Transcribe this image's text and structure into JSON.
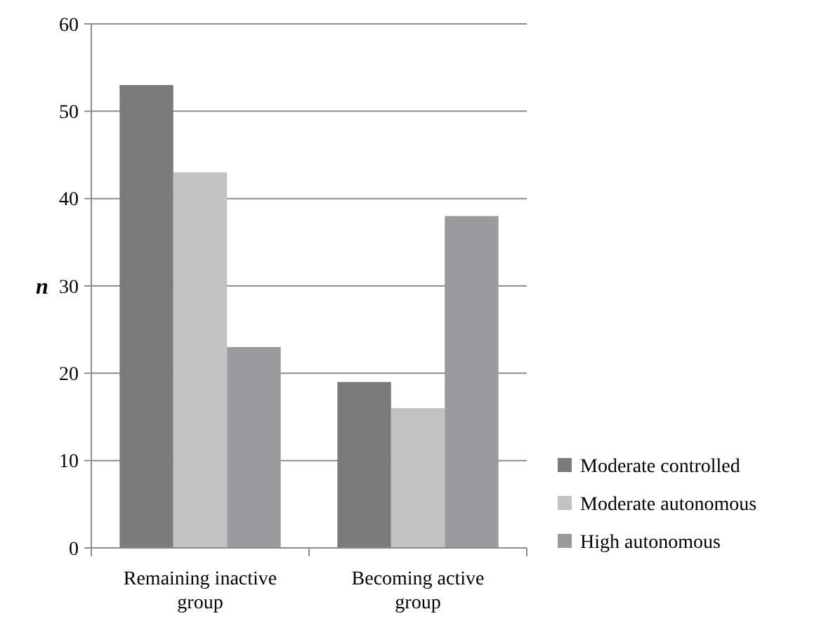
{
  "chart_data": {
    "type": "bar",
    "ylabel": "n",
    "categories": [
      "Remaining inactive group",
      "Becoming active group"
    ],
    "series": [
      {
        "name": "Moderate controlled",
        "color": "#7b7b7b",
        "values": [
          53,
          19
        ]
      },
      {
        "name": "Moderate autonomous",
        "color": "#c2c2c2",
        "values": [
          43,
          16
        ]
      },
      {
        "name": "High autonomous",
        "color": "#9b9b9f",
        "values": [
          23,
          38
        ]
      }
    ],
    "ylim": [
      0,
      60
    ],
    "yticks": [
      0,
      10,
      20,
      30,
      40,
      50,
      60
    ],
    "grid": "y",
    "legend": "right"
  }
}
